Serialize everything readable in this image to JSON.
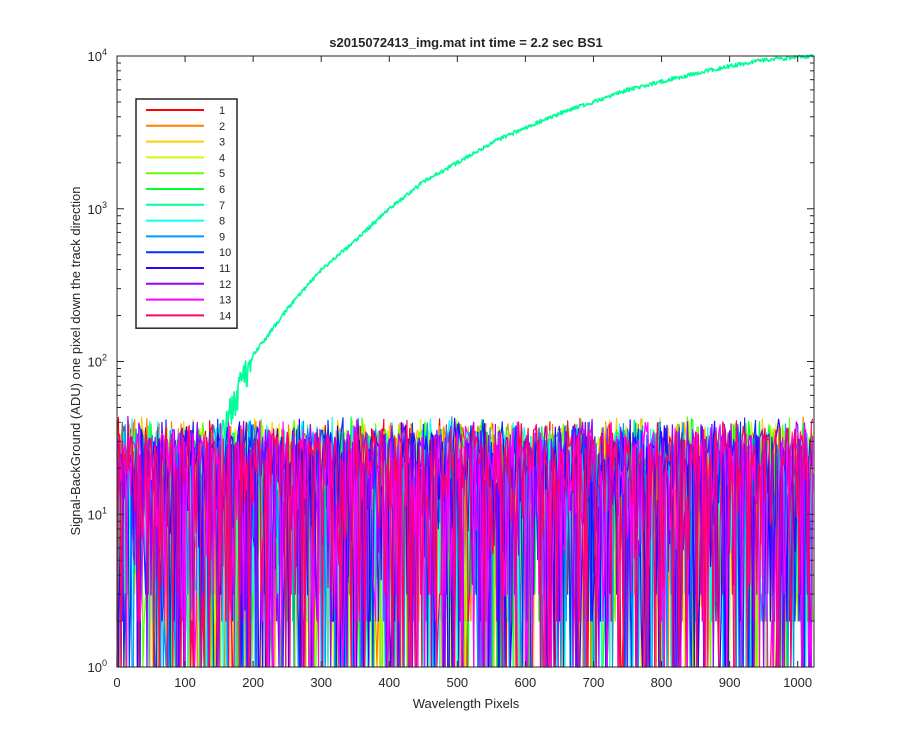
{
  "chart_data": {
    "type": "line",
    "title": "s2015072413_img.mat int time = 2.2 sec   BS1",
    "xlabel": "Wavelength Pixels",
    "ylabel": "Signal-BackGround (ADU) one pixel down the track direction",
    "xlim": [
      0,
      1024
    ],
    "ylim": [
      1,
      10000
    ],
    "yscale": "log",
    "grid": false,
    "legend_position": "top-left",
    "x_ticks": [
      0,
      100,
      200,
      300,
      400,
      500,
      600,
      700,
      800,
      900,
      1000
    ],
    "x_tick_labels": [
      "0",
      "100",
      "200",
      "300",
      "400",
      "500",
      "600",
      "700",
      "800",
      "900",
      "1000"
    ],
    "y_ticks": [
      1,
      10,
      100,
      1000,
      10000
    ],
    "y_tick_labels": [
      {
        "base": "10",
        "exp": "0"
      },
      {
        "base": "10",
        "exp": "1"
      },
      {
        "base": "10",
        "exp": "2"
      },
      {
        "base": "10",
        "exp": "3"
      },
      {
        "base": "10",
        "exp": "4"
      }
    ],
    "noise_band": {
      "typical_min": 2,
      "typical_max": 30
    },
    "series": [
      {
        "name": "1",
        "color": "#ff0000",
        "kind": "noise"
      },
      {
        "name": "2",
        "color": "#ff7f00",
        "kind": "noise"
      },
      {
        "name": "3",
        "color": "#ffcc00",
        "kind": "noise"
      },
      {
        "name": "4",
        "color": "#ccff00",
        "kind": "noise"
      },
      {
        "name": "5",
        "color": "#66ff00",
        "kind": "noise"
      },
      {
        "name": "6",
        "color": "#00ff33",
        "kind": "noise"
      },
      {
        "name": "7",
        "color": "#00ff99",
        "kind": "signal",
        "x": [
          0,
          100,
          130,
          150,
          175,
          200,
          250,
          300,
          350,
          400,
          450,
          500,
          550,
          600,
          650,
          700,
          750,
          800,
          850,
          900,
          950,
          1000,
          1023
        ],
        "y": [
          1,
          2,
          8,
          30,
          60,
          110,
          220,
          400,
          620,
          1000,
          1500,
          2000,
          2700,
          3400,
          4200,
          5000,
          6000,
          6800,
          7700,
          8600,
          9400,
          9800,
          10000
        ]
      },
      {
        "name": "8",
        "color": "#00ffff",
        "kind": "noise"
      },
      {
        "name": "9",
        "color": "#0099ff",
        "kind": "noise"
      },
      {
        "name": "10",
        "color": "#0033ff",
        "kind": "noise"
      },
      {
        "name": "11",
        "color": "#3300ff",
        "kind": "noise"
      },
      {
        "name": "12",
        "color": "#9900ff",
        "kind": "noise"
      },
      {
        "name": "13",
        "color": "#ff00ff",
        "kind": "noise"
      },
      {
        "name": "14",
        "color": "#ff0066",
        "kind": "noise"
      }
    ]
  }
}
